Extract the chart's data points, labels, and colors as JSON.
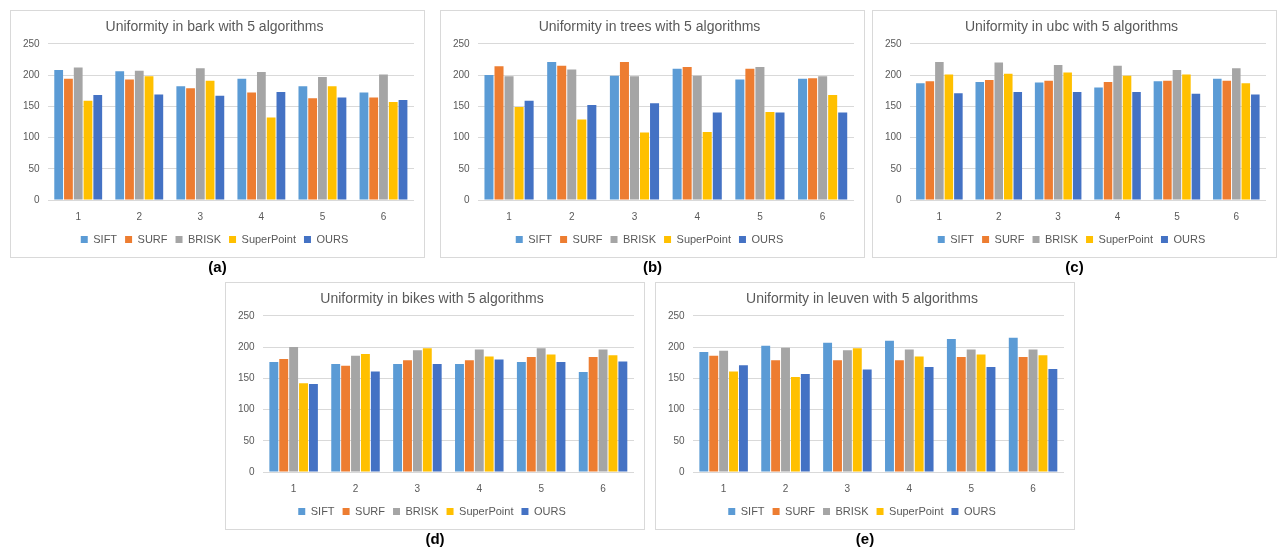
{
  "chart_data": [
    {
      "type": "bar",
      "title": "Uniformity in bark with 5 algorithms",
      "categories": [
        "1",
        "2",
        "3",
        "4",
        "5",
        "6"
      ],
      "series": [
        {
          "name": "SIFT",
          "color": "#5b9bd5",
          "values": [
            208,
            206,
            182,
            194,
            182,
            172
          ]
        },
        {
          "name": "SURF",
          "color": "#ed7d31",
          "values": [
            194,
            193,
            179,
            172,
            163,
            164
          ]
        },
        {
          "name": "BRISK",
          "color": "#a5a5a5",
          "values": [
            212,
            207,
            211,
            205,
            197,
            201
          ]
        },
        {
          "name": "SuperPoint",
          "color": "#ffc000",
          "values": [
            159,
            198,
            191,
            132,
            182,
            157
          ]
        },
        {
          "name": "OURS",
          "color": "#4472c4",
          "values": [
            168,
            169,
            167,
            173,
            164,
            160
          ]
        }
      ],
      "ylim": [
        0,
        250
      ],
      "yticks": [
        0,
        50,
        100,
        150,
        200,
        250
      ],
      "grid": "y",
      "legend": "bottom",
      "annotations": [
        "(a)"
      ]
    },
    {
      "type": "bar",
      "title": "Uniformity in trees with 5 algorithms",
      "categories": [
        "1",
        "2",
        "3",
        "4",
        "5",
        "6"
      ],
      "series": [
        {
          "name": "SIFT",
          "color": "#5b9bd5",
          "values": [
            200,
            221,
            199,
            210,
            193,
            194
          ]
        },
        {
          "name": "SURF",
          "color": "#ed7d31",
          "values": [
            214,
            215,
            221,
            213,
            210,
            195
          ]
        },
        {
          "name": "BRISK",
          "color": "#a5a5a5",
          "values": [
            198,
            209,
            198,
            199,
            213,
            198
          ]
        },
        {
          "name": "SuperPoint",
          "color": "#ffc000",
          "values": [
            149,
            129,
            108,
            109,
            141,
            168
          ]
        },
        {
          "name": "OURS",
          "color": "#4472c4",
          "values": [
            159,
            152,
            155,
            140,
            140,
            140
          ]
        }
      ],
      "ylim": [
        0,
        250
      ],
      "yticks": [
        0,
        50,
        100,
        150,
        200,
        250
      ],
      "grid": "y",
      "legend": "bottom",
      "annotations": [
        "(b)"
      ]
    },
    {
      "type": "bar",
      "title": "Uniformity in ubc with 5 algorithms",
      "categories": [
        "1",
        "2",
        "3",
        "4",
        "5",
        "6"
      ],
      "series": [
        {
          "name": "SIFT",
          "color": "#5b9bd5",
          "values": [
            187,
            189,
            188,
            180,
            190,
            194
          ]
        },
        {
          "name": "SURF",
          "color": "#ed7d31",
          "values": [
            190,
            192,
            191,
            189,
            191,
            191
          ]
        },
        {
          "name": "BRISK",
          "color": "#a5a5a5",
          "values": [
            221,
            220,
            216,
            215,
            208,
            211
          ]
        },
        {
          "name": "SuperPoint",
          "color": "#ffc000",
          "values": [
            201,
            202,
            204,
            199,
            201,
            187
          ]
        },
        {
          "name": "OURS",
          "color": "#4472c4",
          "values": [
            171,
            173,
            173,
            173,
            170,
            169
          ]
        }
      ],
      "ylim": [
        0,
        250
      ],
      "yticks": [
        0,
        50,
        100,
        150,
        200,
        250
      ],
      "grid": "y",
      "legend": "bottom",
      "annotations": [
        "(c)"
      ]
    },
    {
      "type": "bar",
      "title": "Uniformity in bikes with 5 algorithms",
      "categories": [
        "1",
        "2",
        "3",
        "4",
        "5",
        "6"
      ],
      "series": [
        {
          "name": "SIFT",
          "color": "#5b9bd5",
          "values": [
            176,
            173,
            173,
            173,
            176,
            160
          ]
        },
        {
          "name": "SURF",
          "color": "#ed7d31",
          "values": [
            181,
            170,
            179,
            179,
            184,
            184
          ]
        },
        {
          "name": "BRISK",
          "color": "#a5a5a5",
          "values": [
            200,
            186,
            195,
            196,
            198,
            196
          ]
        },
        {
          "name": "SuperPoint",
          "color": "#ffc000",
          "values": [
            142,
            189,
            198,
            185,
            188,
            187
          ]
        },
        {
          "name": "OURS",
          "color": "#4472c4",
          "values": [
            141,
            161,
            173,
            180,
            176,
            177
          ]
        }
      ],
      "ylim": [
        0,
        250
      ],
      "yticks": [
        0,
        50,
        100,
        150,
        200,
        250
      ],
      "grid": "y",
      "legend": "bottom",
      "annotations": [
        "(d)"
      ]
    },
    {
      "type": "bar",
      "title": "Uniformity in leuven with 5 algorithms",
      "categories": [
        "1",
        "2",
        "3",
        "4",
        "5",
        "6"
      ],
      "series": [
        {
          "name": "SIFT",
          "color": "#5b9bd5",
          "values": [
            192,
            202,
            207,
            210,
            213,
            215
          ]
        },
        {
          "name": "SURF",
          "color": "#ed7d31",
          "values": [
            186,
            179,
            179,
            179,
            184,
            184
          ]
        },
        {
          "name": "BRISK",
          "color": "#a5a5a5",
          "values": [
            194,
            199,
            195,
            196,
            196,
            196
          ]
        },
        {
          "name": "SuperPoint",
          "color": "#ffc000",
          "values": [
            161,
            152,
            198,
            185,
            188,
            187
          ]
        },
        {
          "name": "OURS",
          "color": "#4472c4",
          "values": [
            171,
            157,
            164,
            168,
            168,
            165
          ]
        }
      ],
      "ylim": [
        0,
        250
      ],
      "yticks": [
        0,
        50,
        100,
        150,
        200,
        250
      ],
      "grid": "y",
      "legend": "bottom",
      "annotations": [
        "(e)"
      ]
    }
  ]
}
